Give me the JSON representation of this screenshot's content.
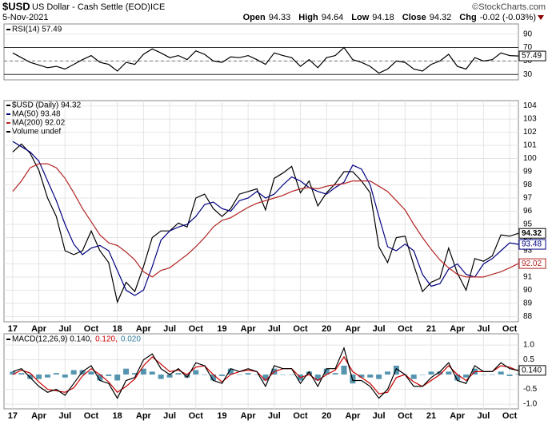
{
  "header": {
    "symbol": "$USD",
    "name": "US Dollar - Cash Settle (EOD)",
    "exchange": "ICE",
    "copyright": "©StockCharts.com",
    "date": "5-Nov-2021",
    "quote": [
      {
        "label": "Open",
        "value": "94.33"
      },
      {
        "label": "High",
        "value": "94.64"
      },
      {
        "label": "Low",
        "value": "94.18"
      },
      {
        "label": "Close",
        "value": "94.32"
      },
      {
        "label": "Chg",
        "value": "-0.02 (-0.03%)"
      }
    ]
  },
  "chart_data": [
    {
      "type": "line",
      "legend_text": "RSI(14) 57.49",
      "xlim": [
        "2016-12",
        "2021-11"
      ],
      "ylim": [
        22,
        105
      ],
      "yticks": [
        90,
        70,
        50,
        30
      ],
      "solid_lines": [
        70,
        30
      ],
      "dashed_lines": [
        50
      ],
      "x": [
        "2017-01",
        "2017-02",
        "2017-03",
        "2017-04",
        "2017-05",
        "2017-06",
        "2017-07",
        "2017-08",
        "2017-09",
        "2017-10",
        "2017-11",
        "2017-12",
        "2018-01",
        "2018-02",
        "2018-03",
        "2018-04",
        "2018-05",
        "2018-06",
        "2018-07",
        "2018-08",
        "2018-09",
        "2018-10",
        "2018-11",
        "2018-12",
        "2019-01",
        "2019-02",
        "2019-03",
        "2019-04",
        "2019-05",
        "2019-06",
        "2019-07",
        "2019-08",
        "2019-09",
        "2019-10",
        "2019-11",
        "2019-12",
        "2020-01",
        "2020-02",
        "2020-03",
        "2020-04",
        "2020-05",
        "2020-06",
        "2020-07",
        "2020-08",
        "2020-09",
        "2020-10",
        "2020-11",
        "2020-12",
        "2021-01",
        "2021-02",
        "2021-03",
        "2021-04",
        "2021-05",
        "2021-06",
        "2021-07",
        "2021-08",
        "2021-09",
        "2021-10",
        "2021-11"
      ],
      "series": [
        {
          "name": "RSI(14)",
          "color": "#000000",
          "tag": true,
          "values": [
            62,
            55,
            48,
            44,
            40,
            42,
            38,
            45,
            52,
            58,
            48,
            45,
            35,
            48,
            45,
            60,
            68,
            62,
            55,
            58,
            52,
            65,
            60,
            50,
            48,
            56,
            55,
            58,
            52,
            45,
            62,
            58,
            55,
            42,
            52,
            40,
            55,
            58,
            70,
            52,
            48,
            42,
            32,
            38,
            50,
            48,
            38,
            35,
            45,
            50,
            60,
            42,
            38,
            55,
            50,
            52,
            62,
            58,
            57.49
          ]
        }
      ]
    },
    {
      "type": "line",
      "legend": [
        "$USD (Daily) 94.32",
        "MA(50) 93.48",
        "MA(200) 92.02",
        "Volume undef"
      ],
      "xlim": [
        "2016-12",
        "2021-11"
      ],
      "ylim": [
        87.6,
        104.4
      ],
      "yticks": [
        88,
        89,
        90,
        91,
        92,
        93,
        94,
        95,
        96,
        97,
        98,
        99,
        100,
        101,
        102,
        103,
        104
      ],
      "xticks": [
        {
          "value": "2017-01",
          "label": "17"
        },
        {
          "value": "2017-04",
          "label": "Apr"
        },
        {
          "value": "2017-07",
          "label": "Jul"
        },
        {
          "value": "2017-10",
          "label": "Oct"
        },
        {
          "value": "2018-01",
          "label": "18"
        },
        {
          "value": "2018-04",
          "label": "Apr"
        },
        {
          "value": "2018-07",
          "label": "Jul"
        },
        {
          "value": "2018-10",
          "label": "Oct"
        },
        {
          "value": "2019-01",
          "label": "19"
        },
        {
          "value": "2019-04",
          "label": "Apr"
        },
        {
          "value": "2019-07",
          "label": "Jul"
        },
        {
          "value": "2019-10",
          "label": "Oct"
        },
        {
          "value": "2020-01",
          "label": "20"
        },
        {
          "value": "2020-04",
          "label": "Apr"
        },
        {
          "value": "2020-07",
          "label": "Jul"
        },
        {
          "value": "2020-10",
          "label": "Oct"
        },
        {
          "value": "2021-01",
          "label": "21"
        },
        {
          "value": "2021-04",
          "label": "Apr"
        },
        {
          "value": "2021-07",
          "label": "Jul"
        },
        {
          "value": "2021-10",
          "label": "Oct"
        }
      ],
      "x": [
        "2017-01",
        "2017-02",
        "2017-03",
        "2017-04",
        "2017-05",
        "2017-06",
        "2017-07",
        "2017-08",
        "2017-09",
        "2017-10",
        "2017-11",
        "2017-12",
        "2018-01",
        "2018-02",
        "2018-03",
        "2018-04",
        "2018-05",
        "2018-06",
        "2018-07",
        "2018-08",
        "2018-09",
        "2018-10",
        "2018-11",
        "2018-12",
        "2019-01",
        "2019-02",
        "2019-03",
        "2019-04",
        "2019-05",
        "2019-06",
        "2019-07",
        "2019-08",
        "2019-09",
        "2019-10",
        "2019-11",
        "2019-12",
        "2020-01",
        "2020-02",
        "2020-03",
        "2020-04",
        "2020-05",
        "2020-06",
        "2020-07",
        "2020-08",
        "2020-09",
        "2020-10",
        "2020-11",
        "2020-12",
        "2021-01",
        "2021-02",
        "2021-03",
        "2021-04",
        "2021-05",
        "2021-06",
        "2021-07",
        "2021-08",
        "2021-09",
        "2021-10",
        "2021-11"
      ],
      "series": [
        {
          "name": "$USD",
          "color": "#000000",
          "tag": true,
          "values": [
            100.5,
            101.1,
            100.4,
            99.1,
            97.0,
            95.6,
            93.0,
            92.7,
            93.0,
            94.5,
            93.0,
            92.1,
            89.1,
            90.6,
            89.9,
            91.8,
            94.0,
            94.5,
            94.5,
            95.1,
            94.8,
            97.0,
            97.3,
            96.2,
            95.6,
            96.2,
            97.3,
            97.5,
            97.7,
            96.1,
            98.5,
            98.9,
            99.4,
            97.4,
            98.3,
            96.4,
            97.4,
            98.1,
            99.0,
            99.0,
            98.3,
            97.4,
            93.3,
            92.1,
            94.0,
            94.1,
            91.9,
            89.9,
            90.6,
            90.9,
            93.2,
            91.3,
            90.0,
            92.4,
            92.2,
            92.6,
            94.2,
            94.1,
            94.32
          ]
        },
        {
          "name": "MA(50)",
          "color": "#000080",
          "tag": true,
          "values": [
            101.3,
            100.9,
            100.5,
            99.8,
            98.3,
            96.8,
            95.0,
            93.5,
            92.7,
            93.2,
            93.4,
            93.0,
            91.5,
            90.0,
            89.6,
            90.0,
            91.8,
            93.8,
            94.5,
            94.8,
            95.0,
            95.6,
            96.5,
            96.7,
            96.2,
            96.0,
            96.8,
            97.0,
            97.5,
            97.0,
            97.3,
            98.0,
            98.6,
            98.3,
            97.8,
            97.5,
            97.3,
            97.8,
            98.2,
            99.5,
            99.2,
            98.0,
            95.6,
            93.3,
            93.0,
            93.5,
            93.0,
            91.2,
            90.3,
            90.5,
            91.6,
            92.0,
            91.2,
            91.0,
            92.0,
            92.4,
            93.0,
            93.6,
            93.48
          ]
        },
        {
          "name": "MA(200)",
          "color": "#b22222",
          "tag": true,
          "values": [
            97.5,
            98.3,
            99.3,
            99.6,
            99.6,
            99.3,
            98.5,
            97.4,
            96.2,
            95.2,
            94.2,
            93.6,
            93.4,
            92.9,
            92.3,
            91.4,
            91.0,
            91.5,
            91.7,
            92.2,
            92.7,
            93.3,
            94.0,
            94.8,
            95.3,
            95.5,
            95.9,
            96.3,
            96.6,
            96.8,
            97.0,
            97.2,
            97.5,
            97.7,
            97.8,
            97.7,
            97.9,
            98.0,
            98.1,
            98.3,
            98.3,
            98.3,
            97.9,
            97.5,
            96.8,
            96.1,
            95.0,
            94.0,
            93.1,
            92.3,
            91.7,
            91.2,
            91.0,
            91.0,
            91.0,
            91.2,
            91.4,
            91.7,
            92.02
          ]
        }
      ]
    },
    {
      "type": "line",
      "legend_parts": [
        {
          "text": "MACD(12,26,9) 0.140,",
          "color": "#000000"
        },
        {
          "text": "0.120,",
          "color": "#cc0000"
        },
        {
          "text": "0.020",
          "color": "#2b7a9b"
        }
      ],
      "last_label": "0.140",
      "xlim": [
        "2016-12",
        "2021-11"
      ],
      "ylim": [
        -1.16,
        1.38
      ],
      "yticks": [
        {
          "value": 1,
          "label": "1.0"
        },
        0.5,
        -0.5,
        {
          "value": -1,
          "label": "-1.0"
        }
      ],
      "xticks": [
        {
          "value": "2017-01",
          "label": "17"
        },
        {
          "value": "2017-04",
          "label": "Apr"
        },
        {
          "value": "2017-07",
          "label": "Jul"
        },
        {
          "value": "2017-10",
          "label": "Oct"
        },
        {
          "value": "2018-01",
          "label": "18"
        },
        {
          "value": "2018-04",
          "label": "Apr"
        },
        {
          "value": "2018-07",
          "label": "Jul"
        },
        {
          "value": "2018-10",
          "label": "Oct"
        },
        {
          "value": "2019-01",
          "label": "19"
        },
        {
          "value": "2019-04",
          "label": "Apr"
        },
        {
          "value": "2019-07",
          "label": "Jul"
        },
        {
          "value": "2019-10",
          "label": "Oct"
        },
        {
          "value": "2020-01",
          "label": "20"
        },
        {
          "value": "2020-04",
          "label": "Apr"
        },
        {
          "value": "2020-07",
          "label": "Jul"
        },
        {
          "value": "2020-10",
          "label": "Oct"
        },
        {
          "value": "2021-01",
          "label": "21"
        },
        {
          "value": "2021-04",
          "label": "Apr"
        },
        {
          "value": "2021-07",
          "label": "Jul"
        },
        {
          "value": "2021-10",
          "label": "Oct"
        }
      ],
      "x": [
        "2017-01",
        "2017-02",
        "2017-03",
        "2017-04",
        "2017-05",
        "2017-06",
        "2017-07",
        "2017-08",
        "2017-09",
        "2017-10",
        "2017-11",
        "2017-12",
        "2018-01",
        "2018-02",
        "2018-03",
        "2018-04",
        "2018-05",
        "2018-06",
        "2018-07",
        "2018-08",
        "2018-09",
        "2018-10",
        "2018-11",
        "2018-12",
        "2019-01",
        "2019-02",
        "2019-03",
        "2019-04",
        "2019-05",
        "2019-06",
        "2019-07",
        "2019-08",
        "2019-09",
        "2019-10",
        "2019-11",
        "2019-12",
        "2020-01",
        "2020-02",
        "2020-03",
        "2020-04",
        "2020-05",
        "2020-06",
        "2020-07",
        "2020-08",
        "2020-09",
        "2020-10",
        "2020-11",
        "2020-12",
        "2021-01",
        "2021-02",
        "2021-03",
        "2021-04",
        "2021-05",
        "2021-06",
        "2021-07",
        "2021-08",
        "2021-09",
        "2021-10",
        "2021-11"
      ],
      "series": [
        {
          "name": "Histogram",
          "color": "#2b7a9b",
          "style": "bar",
          "values": [
            0.1,
            0.05,
            -0.15,
            -0.15,
            -0.1,
            0.05,
            -0.1,
            0.15,
            0.15,
            0.1,
            -0.2,
            -0.05,
            -0.2,
            0.2,
            0.05,
            0.2,
            0.1,
            -0.15,
            -0.1,
            0.05,
            -0.1,
            0.15,
            0,
            -0.2,
            -0.05,
            0.2,
            0,
            0.05,
            0,
            -0.2,
            0.2,
            0,
            0,
            -0.2,
            0.1,
            -0.2,
            0.2,
            0.05,
            0.3,
            -0.3,
            -0.1,
            -0.1,
            -0.15,
            0.1,
            0.3,
            0,
            -0.15,
            0,
            0.1,
            0.1,
            0.1,
            -0.2,
            -0.1,
            0.2,
            0,
            0,
            0.1,
            -0.05,
            0.02
          ]
        },
        {
          "name": "Signal",
          "color": "#cc0000",
          "values": [
            0.0,
            0.15,
            0.05,
            -0.25,
            -0.5,
            -0.55,
            -0.6,
            -0.45,
            -0.05,
            0.2,
            0.0,
            -0.25,
            -0.6,
            -0.4,
            -0.15,
            0.3,
            0.6,
            0.35,
            0.1,
            0.15,
            0.0,
            0.25,
            0.3,
            0.0,
            -0.25,
            0.0,
            0.1,
            0.15,
            0.1,
            -0.2,
            0.1,
            0.2,
            0.2,
            -0.1,
            0.0,
            -0.2,
            0.0,
            0.15,
            0.6,
            0.1,
            -0.1,
            -0.3,
            -0.65,
            -0.6,
            -0.1,
            0.0,
            -0.25,
            -0.4,
            -0.2,
            0.0,
            0.3,
            0.0,
            -0.2,
            0.1,
            0.1,
            0.1,
            0.3,
            0.25,
            0.12
          ]
        },
        {
          "name": "MACD",
          "color": "#000000",
          "values": [
            0.1,
            0.2,
            -0.1,
            -0.4,
            -0.6,
            -0.5,
            -0.7,
            -0.3,
            0.1,
            0.3,
            -0.2,
            -0.3,
            -0.8,
            -0.2,
            -0.1,
            0.5,
            0.7,
            0.2,
            0.0,
            0.2,
            -0.1,
            0.4,
            0.3,
            -0.2,
            -0.3,
            0.2,
            0.1,
            0.2,
            0.1,
            -0.4,
            0.3,
            0.2,
            0.2,
            -0.3,
            0.1,
            -0.4,
            0.2,
            0.2,
            0.9,
            -0.2,
            -0.2,
            -0.4,
            -0.8,
            -0.5,
            0.2,
            0.0,
            -0.4,
            -0.4,
            -0.1,
            0.1,
            0.4,
            -0.2,
            -0.3,
            0.3,
            0.1,
            0.1,
            0.4,
            0.2,
            0.14
          ]
        }
      ]
    }
  ]
}
